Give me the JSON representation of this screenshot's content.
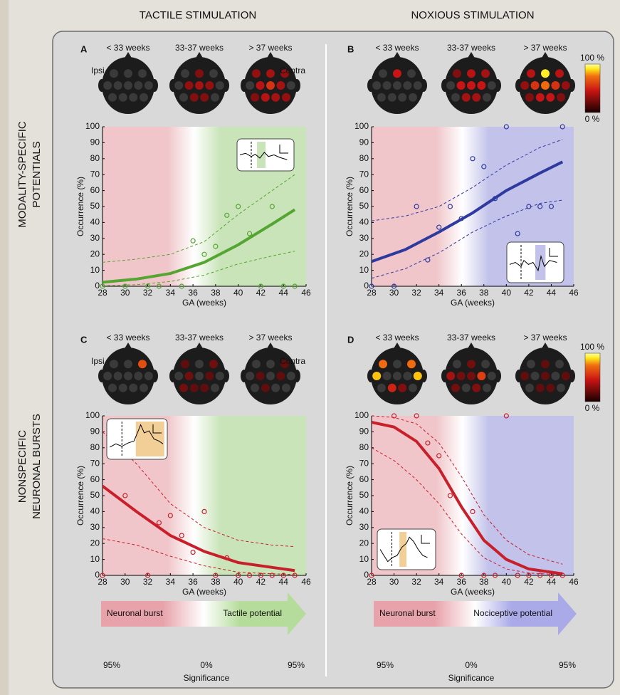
{
  "column_titles": [
    "TACTILE STIMULATION",
    "NOXIOUS STIMULATION"
  ],
  "row_titles": [
    [
      "MODALITY-SPECIFIC",
      "POTENTIALS"
    ],
    [
      "NONSPECIFIC",
      "NEURONAL BURSTS"
    ]
  ],
  "colorbar": {
    "labels": [
      "100 %",
      "0 %"
    ]
  },
  "chart_data": [
    {
      "type": "scatter",
      "panel": "A",
      "head_groups": [
        "< 33 weeks",
        "33-37 weeks",
        "> 37 weeks"
      ],
      "side_labels": [
        "Ipsi",
        "Contra"
      ],
      "heads": [
        [
          0,
          0,
          0,
          0,
          0,
          0,
          0,
          0,
          0,
          0,
          0,
          0
        ],
        [
          0,
          20,
          0,
          0,
          25,
          30,
          25,
          0,
          0,
          20,
          20,
          0
        ],
        [
          25,
          30,
          25,
          0,
          35,
          50,
          30,
          0,
          20,
          35,
          30,
          25
        ]
      ],
      "xlabel": "GA (weeks)",
      "ylabel": "Occurrence (%)",
      "color": "#54a531",
      "shade_colors": [
        "#f0c6ca",
        "#c9e4b8"
      ],
      "xlim": [
        28,
        46
      ],
      "ylim": [
        0,
        100
      ],
      "xticks": [
        28,
        30,
        32,
        34,
        36,
        38,
        40,
        42,
        44,
        46
      ],
      "yticks": [
        0,
        10,
        20,
        30,
        40,
        50,
        60,
        70,
        80,
        90,
        100
      ],
      "x": [
        28,
        30,
        32,
        33,
        35,
        36,
        37,
        38,
        39,
        40,
        41,
        42,
        43,
        44,
        45
      ],
      "values": [
        0,
        0,
        0,
        0,
        0,
        28.5,
        20,
        25,
        44.5,
        50,
        33,
        0,
        50,
        0,
        0
      ],
      "fit": {
        "x": [
          28,
          31,
          34,
          37,
          40,
          43,
          45
        ],
        "values": [
          2.5,
          4.5,
          8,
          15,
          26,
          39,
          48
        ]
      },
      "ci_upper": {
        "x": [
          28,
          31,
          34,
          37,
          40,
          43,
          45
        ],
        "values": [
          15,
          17,
          20,
          28,
          45,
          60,
          70
        ]
      },
      "ci_lower": {
        "x": [
          28,
          31,
          34,
          37,
          40,
          43,
          45
        ],
        "values": [
          0.3,
          1,
          3,
          7,
          14,
          19,
          22
        ]
      }
    },
    {
      "type": "scatter",
      "panel": "B",
      "head_groups": [
        "< 33 weeks",
        "33-37 weeks",
        "> 37 weeks"
      ],
      "heads": [
        [
          0,
          40,
          0,
          0,
          0,
          0,
          0,
          0,
          0,
          0,
          0,
          0
        ],
        [
          20,
          35,
          30,
          0,
          40,
          40,
          40,
          0,
          0,
          30,
          30,
          0
        ],
        [
          35,
          95,
          35,
          25,
          50,
          70,
          50,
          25,
          20,
          40,
          40,
          20
        ]
      ],
      "xlabel": "GA (weeks)",
      "ylabel": "Occurrence (%)",
      "color": "#2e3a9e",
      "shade_colors": [
        "#f0c6ca",
        "#c2c2ea"
      ],
      "xlim": [
        28,
        46
      ],
      "ylim": [
        0,
        100
      ],
      "xticks": [
        28,
        30,
        32,
        34,
        36,
        38,
        40,
        42,
        44,
        46
      ],
      "yticks": [
        0,
        10,
        20,
        30,
        40,
        50,
        60,
        70,
        80,
        90,
        100
      ],
      "x": [
        28,
        30,
        32,
        33,
        34,
        35,
        36,
        37,
        38,
        39,
        40,
        41,
        42,
        43,
        44,
        45
      ],
      "values": [
        0,
        0,
        50,
        16.5,
        37,
        50,
        42.5,
        80,
        75,
        55,
        100,
        33,
        50,
        50,
        50,
        100
      ],
      "fit": {
        "x": [
          28,
          31,
          34,
          37,
          40,
          43,
          45
        ],
        "values": [
          15.5,
          23,
          34,
          46,
          60,
          71,
          78
        ]
      },
      "ci_upper": {
        "x": [
          28,
          31,
          34,
          37,
          40,
          43,
          45
        ],
        "values": [
          41,
          44,
          50,
          62,
          76,
          87,
          92
        ]
      },
      "ci_lower": {
        "x": [
          28,
          31,
          34,
          37,
          40,
          43,
          45
        ],
        "values": [
          5,
          11,
          21,
          34,
          44,
          52,
          54
        ]
      }
    },
    {
      "type": "scatter",
      "panel": "C",
      "head_groups": [
        "< 33 weeks",
        "33-37 weeks",
        "> 37 weeks"
      ],
      "side_labels": [
        "Ipsi",
        "Contra"
      ],
      "heads": [
        [
          0,
          0,
          60,
          0,
          0,
          0,
          0,
          0,
          0,
          0,
          0,
          0
        ],
        [
          10,
          0,
          15,
          0,
          15,
          0,
          10,
          0,
          15,
          10,
          10,
          0
        ],
        [
          0,
          0,
          10,
          0,
          10,
          0,
          10,
          0,
          0,
          10,
          0,
          0
        ]
      ],
      "xlabel": "GA (weeks)",
      "ylabel": "Occurrence (%)",
      "color": "#c8202a",
      "shade_colors": [
        "#f0c6ca",
        "#c9e4b8"
      ],
      "xlim": [
        28,
        46
      ],
      "ylim": [
        0,
        100
      ],
      "xticks": [
        28,
        30,
        32,
        34,
        36,
        38,
        40,
        42,
        44,
        46
      ],
      "yticks": [
        0,
        10,
        20,
        30,
        40,
        50,
        60,
        70,
        80,
        90,
        100
      ],
      "x": [
        28,
        30,
        32,
        33,
        34,
        35,
        36,
        37,
        38,
        39,
        40,
        41,
        42,
        43,
        44,
        45
      ],
      "values": [
        0,
        50,
        0,
        33,
        37.5,
        25,
        14.5,
        40,
        0,
        11,
        0,
        0,
        0,
        0,
        0,
        0
      ],
      "fit": {
        "x": [
          28,
          31,
          34,
          37,
          40,
          43,
          45
        ],
        "values": [
          56,
          40,
          25,
          15,
          8,
          5,
          3
        ]
      },
      "ci_upper": {
        "x": [
          28,
          31,
          34,
          37,
          40,
          43,
          45
        ],
        "values": [
          90,
          70,
          45,
          30,
          22,
          19,
          18
        ]
      },
      "ci_lower": {
        "x": [
          28,
          31,
          34,
          37,
          40,
          43,
          45
        ],
        "values": [
          23,
          19,
          12,
          6,
          2,
          1,
          0.5
        ]
      }
    },
    {
      "type": "scatter",
      "panel": "D",
      "head_groups": [
        "< 33 weeks",
        "33-37 weeks",
        "> 37 weeks"
      ],
      "heads": [
        [
          70,
          0,
          70,
          85,
          0,
          0,
          0,
          85,
          0,
          45,
          20,
          0
        ],
        [
          0,
          15,
          0,
          30,
          15,
          15,
          55,
          0,
          15,
          0,
          20,
          0
        ],
        [
          0,
          10,
          0,
          10,
          0,
          10,
          0,
          10,
          0,
          10,
          10,
          0
        ]
      ],
      "xlabel": "GA (weeks)",
      "ylabel": "Occurrence (%)",
      "color": "#c8202a",
      "shade_colors": [
        "#f0c6ca",
        "#c2c2ea"
      ],
      "xlim": [
        28,
        46
      ],
      "ylim": [
        0,
        100
      ],
      "xticks": [
        28,
        30,
        32,
        34,
        36,
        38,
        40,
        42,
        44,
        46
      ],
      "yticks": [
        0,
        10,
        20,
        30,
        40,
        50,
        60,
        70,
        80,
        90,
        100
      ],
      "x": [
        28,
        30,
        32,
        33,
        34,
        35,
        36,
        37,
        38,
        39,
        40,
        41,
        42,
        43,
        44,
        45
      ],
      "values": [
        0,
        100,
        100,
        83,
        75,
        50,
        0,
        40,
        0,
        0,
        100,
        0,
        0,
        0,
        0,
        0
      ],
      "fit": {
        "x": [
          28,
          30,
          32,
          34,
          35,
          36,
          38,
          40,
          42,
          45
        ],
        "values": [
          96,
          93,
          84,
          67,
          55,
          43,
          22,
          10,
          4,
          1
        ]
      },
      "ci_upper": {
        "x": [
          28,
          30,
          32,
          34,
          36,
          38,
          40,
          42,
          45
        ],
        "values": [
          100,
          99,
          95,
          83,
          62,
          38,
          22,
          13,
          7
        ]
      },
      "ci_lower": {
        "x": [
          28,
          30,
          32,
          34,
          36,
          38,
          40,
          42,
          45
        ],
        "values": [
          80,
          72,
          60,
          45,
          26,
          11,
          4,
          1.5,
          0.3
        ]
      }
    }
  ],
  "arrows": [
    {
      "left_label": "Neuronal burst",
      "right_label": "Tactile potential",
      "colors": [
        "#e8a2aa",
        "#b5dc9a"
      ],
      "scale_labels": [
        "95%",
        "0%",
        "95%"
      ],
      "axis_label": "Significance"
    },
    {
      "left_label": "Neuronal burst",
      "right_label": "Nociceptive potential",
      "colors": [
        "#e8a2aa",
        "#aaaae8"
      ],
      "scale_labels": [
        "95%",
        "0%",
        "95%"
      ],
      "axis_label": "Significance"
    }
  ]
}
